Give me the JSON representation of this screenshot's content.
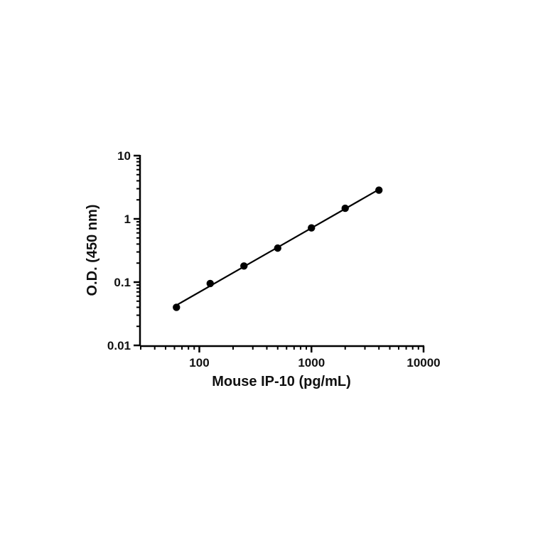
{
  "chart_data": {
    "type": "scatter",
    "title": "",
    "xlabel": "Mouse IP-10 (pg/mL)",
    "ylabel": "O.D. (450 nm)",
    "x_scale": "log",
    "y_scale": "log",
    "xlim": [
      30,
      10000
    ],
    "ylim": [
      0.01,
      10
    ],
    "x_tick_labels": [
      "100",
      "1000",
      "10000"
    ],
    "y_tick_labels": [
      "0.01",
      "0.1",
      "1",
      "10"
    ],
    "grid": false,
    "legend": "none",
    "series": [
      {
        "x": [
          62.5,
          125,
          250,
          500,
          1000,
          2000,
          4000
        ],
        "y": [
          0.04,
          0.095,
          0.18,
          0.345,
          0.72,
          1.47,
          2.85
        ],
        "fit_line": true
      }
    ],
    "colors": {
      "marker": "#000000",
      "line": "#000000",
      "axis": "#000000"
    }
  }
}
